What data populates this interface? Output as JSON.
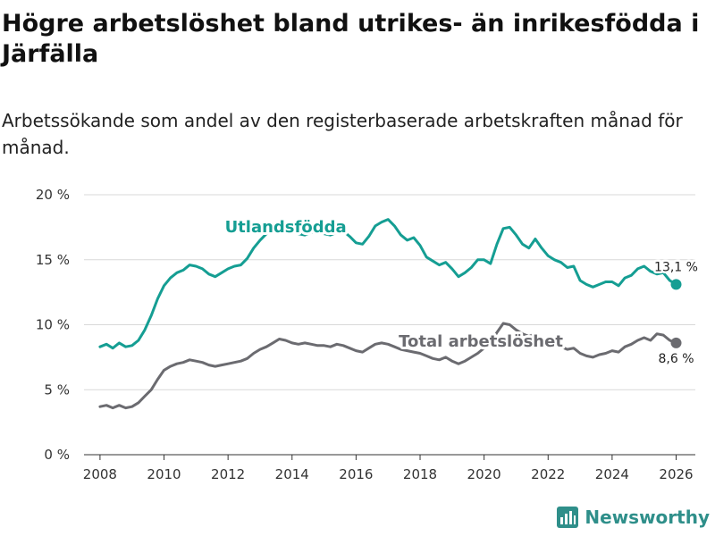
{
  "chart_data": {
    "type": "line",
    "title": "Högre arbetslöshet bland utrikes- än inrikesfödda i Järfälla",
    "subtitle": "Arbetssökande som andel av den registerbaserade arbetskraften månad för månad.",
    "xlabel": "",
    "ylabel": "",
    "xlim": [
      2007.5,
      2026.6
    ],
    "ylim": [
      0,
      20
    ],
    "x_ticks": [
      2008,
      2010,
      2012,
      2014,
      2016,
      2018,
      2020,
      2022,
      2024,
      2026
    ],
    "x_tick_labels": [
      "2008",
      "2010",
      "2012",
      "2014",
      "2016",
      "2018",
      "2020",
      "2022",
      "2024",
      "2026"
    ],
    "y_ticks": [
      0,
      5,
      10,
      15,
      20
    ],
    "y_tick_labels": [
      "0 %",
      "5 %",
      "10 %",
      "15 %",
      "20 %"
    ],
    "series": [
      {
        "name": "Utlandsfödda",
        "color": "#159e93",
        "end_label": "13,1 %",
        "points": [
          [
            2008.0,
            8.3
          ],
          [
            2008.2,
            8.5
          ],
          [
            2008.4,
            8.2
          ],
          [
            2008.6,
            8.6
          ],
          [
            2008.8,
            8.3
          ],
          [
            2009.0,
            8.4
          ],
          [
            2009.2,
            8.8
          ],
          [
            2009.4,
            9.6
          ],
          [
            2009.6,
            10.7
          ],
          [
            2009.8,
            12.0
          ],
          [
            2010.0,
            13.0
          ],
          [
            2010.2,
            13.6
          ],
          [
            2010.4,
            14.0
          ],
          [
            2010.6,
            14.2
          ],
          [
            2010.8,
            14.6
          ],
          [
            2011.0,
            14.5
          ],
          [
            2011.2,
            14.3
          ],
          [
            2011.4,
            13.9
          ],
          [
            2011.6,
            13.7
          ],
          [
            2011.8,
            14.0
          ],
          [
            2012.0,
            14.3
          ],
          [
            2012.2,
            14.5
          ],
          [
            2012.4,
            14.6
          ],
          [
            2012.6,
            15.1
          ],
          [
            2012.8,
            15.9
          ],
          [
            2013.0,
            16.5
          ],
          [
            2013.2,
            17.0
          ],
          [
            2013.4,
            17.4
          ],
          [
            2013.6,
            17.8
          ],
          [
            2013.8,
            17.6
          ],
          [
            2014.0,
            17.2
          ],
          [
            2014.2,
            17.0
          ],
          [
            2014.4,
            16.9
          ],
          [
            2014.6,
            17.1
          ],
          [
            2014.8,
            17.2
          ],
          [
            2015.0,
            17.0
          ],
          [
            2015.2,
            16.9
          ],
          [
            2015.4,
            17.1
          ],
          [
            2015.6,
            17.2
          ],
          [
            2015.8,
            16.8
          ],
          [
            2016.0,
            16.3
          ],
          [
            2016.2,
            16.2
          ],
          [
            2016.4,
            16.8
          ],
          [
            2016.6,
            17.6
          ],
          [
            2016.8,
            17.9
          ],
          [
            2017.0,
            18.1
          ],
          [
            2017.2,
            17.6
          ],
          [
            2017.4,
            16.9
          ],
          [
            2017.6,
            16.5
          ],
          [
            2017.8,
            16.7
          ],
          [
            2018.0,
            16.1
          ],
          [
            2018.2,
            15.2
          ],
          [
            2018.4,
            14.9
          ],
          [
            2018.6,
            14.6
          ],
          [
            2018.8,
            14.8
          ],
          [
            2019.0,
            14.3
          ],
          [
            2019.2,
            13.7
          ],
          [
            2019.4,
            14.0
          ],
          [
            2019.6,
            14.4
          ],
          [
            2019.8,
            15.0
          ],
          [
            2020.0,
            15.0
          ],
          [
            2020.2,
            14.7
          ],
          [
            2020.4,
            16.2
          ],
          [
            2020.6,
            17.4
          ],
          [
            2020.8,
            17.5
          ],
          [
            2021.0,
            16.9
          ],
          [
            2021.2,
            16.2
          ],
          [
            2021.4,
            15.9
          ],
          [
            2021.6,
            16.6
          ],
          [
            2021.8,
            15.9
          ],
          [
            2022.0,
            15.3
          ],
          [
            2022.2,
            15.0
          ],
          [
            2022.4,
            14.8
          ],
          [
            2022.6,
            14.4
          ],
          [
            2022.8,
            14.5
          ],
          [
            2023.0,
            13.4
          ],
          [
            2023.2,
            13.1
          ],
          [
            2023.4,
            12.9
          ],
          [
            2023.6,
            13.1
          ],
          [
            2023.8,
            13.3
          ],
          [
            2024.0,
            13.3
          ],
          [
            2024.2,
            13.0
          ],
          [
            2024.4,
            13.6
          ],
          [
            2024.6,
            13.8
          ],
          [
            2024.8,
            14.3
          ],
          [
            2025.0,
            14.5
          ],
          [
            2025.2,
            14.1
          ],
          [
            2025.4,
            13.9
          ],
          [
            2025.6,
            14.0
          ],
          [
            2025.8,
            13.4
          ],
          [
            2026.0,
            13.1
          ]
        ]
      },
      {
        "name": "Total arbetslöshet",
        "color": "#6b6b70",
        "end_label": "8,6 %",
        "points": [
          [
            2008.0,
            3.7
          ],
          [
            2008.2,
            3.8
          ],
          [
            2008.4,
            3.6
          ],
          [
            2008.6,
            3.8
          ],
          [
            2008.8,
            3.6
          ],
          [
            2009.0,
            3.7
          ],
          [
            2009.2,
            4.0
          ],
          [
            2009.4,
            4.5
          ],
          [
            2009.6,
            5.0
          ],
          [
            2009.8,
            5.8
          ],
          [
            2010.0,
            6.5
          ],
          [
            2010.2,
            6.8
          ],
          [
            2010.4,
            7.0
          ],
          [
            2010.6,
            7.1
          ],
          [
            2010.8,
            7.3
          ],
          [
            2011.0,
            7.2
          ],
          [
            2011.2,
            7.1
          ],
          [
            2011.4,
            6.9
          ],
          [
            2011.6,
            6.8
          ],
          [
            2011.8,
            6.9
          ],
          [
            2012.0,
            7.0
          ],
          [
            2012.2,
            7.1
          ],
          [
            2012.4,
            7.2
          ],
          [
            2012.6,
            7.4
          ],
          [
            2012.8,
            7.8
          ],
          [
            2013.0,
            8.1
          ],
          [
            2013.2,
            8.3
          ],
          [
            2013.4,
            8.6
          ],
          [
            2013.6,
            8.9
          ],
          [
            2013.8,
            8.8
          ],
          [
            2014.0,
            8.6
          ],
          [
            2014.2,
            8.5
          ],
          [
            2014.4,
            8.6
          ],
          [
            2014.6,
            8.5
          ],
          [
            2014.8,
            8.4
          ],
          [
            2015.0,
            8.4
          ],
          [
            2015.2,
            8.3
          ],
          [
            2015.4,
            8.5
          ],
          [
            2015.6,
            8.4
          ],
          [
            2015.8,
            8.2
          ],
          [
            2016.0,
            8.0
          ],
          [
            2016.2,
            7.9
          ],
          [
            2016.4,
            8.2
          ],
          [
            2016.6,
            8.5
          ],
          [
            2016.8,
            8.6
          ],
          [
            2017.0,
            8.5
          ],
          [
            2017.2,
            8.3
          ],
          [
            2017.4,
            8.1
          ],
          [
            2017.6,
            8.0
          ],
          [
            2017.8,
            7.9
          ],
          [
            2018.0,
            7.8
          ],
          [
            2018.2,
            7.6
          ],
          [
            2018.4,
            7.4
          ],
          [
            2018.6,
            7.3
          ],
          [
            2018.8,
            7.5
          ],
          [
            2019.0,
            7.2
          ],
          [
            2019.2,
            7.0
          ],
          [
            2019.4,
            7.2
          ],
          [
            2019.6,
            7.5
          ],
          [
            2019.8,
            7.8
          ],
          [
            2020.0,
            8.2
          ],
          [
            2020.2,
            8.6
          ],
          [
            2020.4,
            9.4
          ],
          [
            2020.6,
            10.1
          ],
          [
            2020.8,
            10.0
          ],
          [
            2021.0,
            9.6
          ],
          [
            2021.2,
            9.3
          ],
          [
            2021.4,
            9.1
          ],
          [
            2021.6,
            9.3
          ],
          [
            2021.8,
            8.9
          ],
          [
            2022.0,
            8.6
          ],
          [
            2022.2,
            8.4
          ],
          [
            2022.4,
            8.3
          ],
          [
            2022.6,
            8.1
          ],
          [
            2022.8,
            8.2
          ],
          [
            2023.0,
            7.8
          ],
          [
            2023.2,
            7.6
          ],
          [
            2023.4,
            7.5
          ],
          [
            2023.6,
            7.7
          ],
          [
            2023.8,
            7.8
          ],
          [
            2024.0,
            8.0
          ],
          [
            2024.2,
            7.9
          ],
          [
            2024.4,
            8.3
          ],
          [
            2024.6,
            8.5
          ],
          [
            2024.8,
            8.8
          ],
          [
            2025.0,
            9.0
          ],
          [
            2025.2,
            8.8
          ],
          [
            2025.4,
            9.3
          ],
          [
            2025.6,
            9.2
          ],
          [
            2025.8,
            8.8
          ],
          [
            2026.0,
            8.6
          ]
        ]
      }
    ],
    "annotations": [
      {
        "text": "Utlandsfödda",
        "series": "Utlandsfödda",
        "at": [
          2013.8,
          17.1
        ]
      },
      {
        "text": "Total arbetslöshet",
        "series": "Total arbetslöshet",
        "at": [
          2019.9,
          8.3
        ]
      }
    ],
    "legend": "none",
    "grid": "horizontal"
  },
  "brand": {
    "name": "Newsworthy",
    "icon": "bar-chart-logo-icon"
  }
}
